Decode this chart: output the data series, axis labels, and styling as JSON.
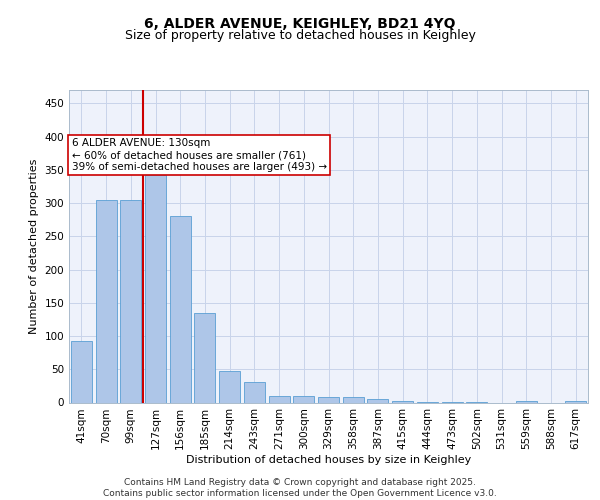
{
  "title1": "6, ALDER AVENUE, KEIGHLEY, BD21 4YQ",
  "title2": "Size of property relative to detached houses in Keighley",
  "xlabel": "Distribution of detached houses by size in Keighley",
  "ylabel": "Number of detached properties",
  "categories": [
    "41sqm",
    "70sqm",
    "99sqm",
    "127sqm",
    "156sqm",
    "185sqm",
    "214sqm",
    "243sqm",
    "271sqm",
    "300sqm",
    "329sqm",
    "358sqm",
    "387sqm",
    "415sqm",
    "444sqm",
    "473sqm",
    "502sqm",
    "531sqm",
    "559sqm",
    "588sqm",
    "617sqm"
  ],
  "values": [
    93,
    305,
    305,
    342,
    280,
    135,
    48,
    31,
    10,
    10,
    9,
    8,
    5,
    3,
    1,
    1,
    1,
    0,
    3,
    0,
    2
  ],
  "bar_color": "#aec6e8",
  "bar_edge_color": "#5a9fd4",
  "vline_color": "#cc0000",
  "annotation_text": "6 ALDER AVENUE: 130sqm\n← 60% of detached houses are smaller (761)\n39% of semi-detached houses are larger (493) →",
  "annotation_box_color": "#ffffff",
  "annotation_box_edge": "#cc0000",
  "background_color": "#eef2fb",
  "grid_color": "#c8d4ea",
  "ylim": [
    0,
    470
  ],
  "yticks": [
    0,
    50,
    100,
    150,
    200,
    250,
    300,
    350,
    400,
    450
  ],
  "footer": "Contains HM Land Registry data © Crown copyright and database right 2025.\nContains public sector information licensed under the Open Government Licence v3.0.",
  "title_fontsize": 10,
  "subtitle_fontsize": 9,
  "axis_label_fontsize": 8,
  "tick_fontsize": 7.5,
  "annotation_fontsize": 7.5,
  "footer_fontsize": 6.5
}
